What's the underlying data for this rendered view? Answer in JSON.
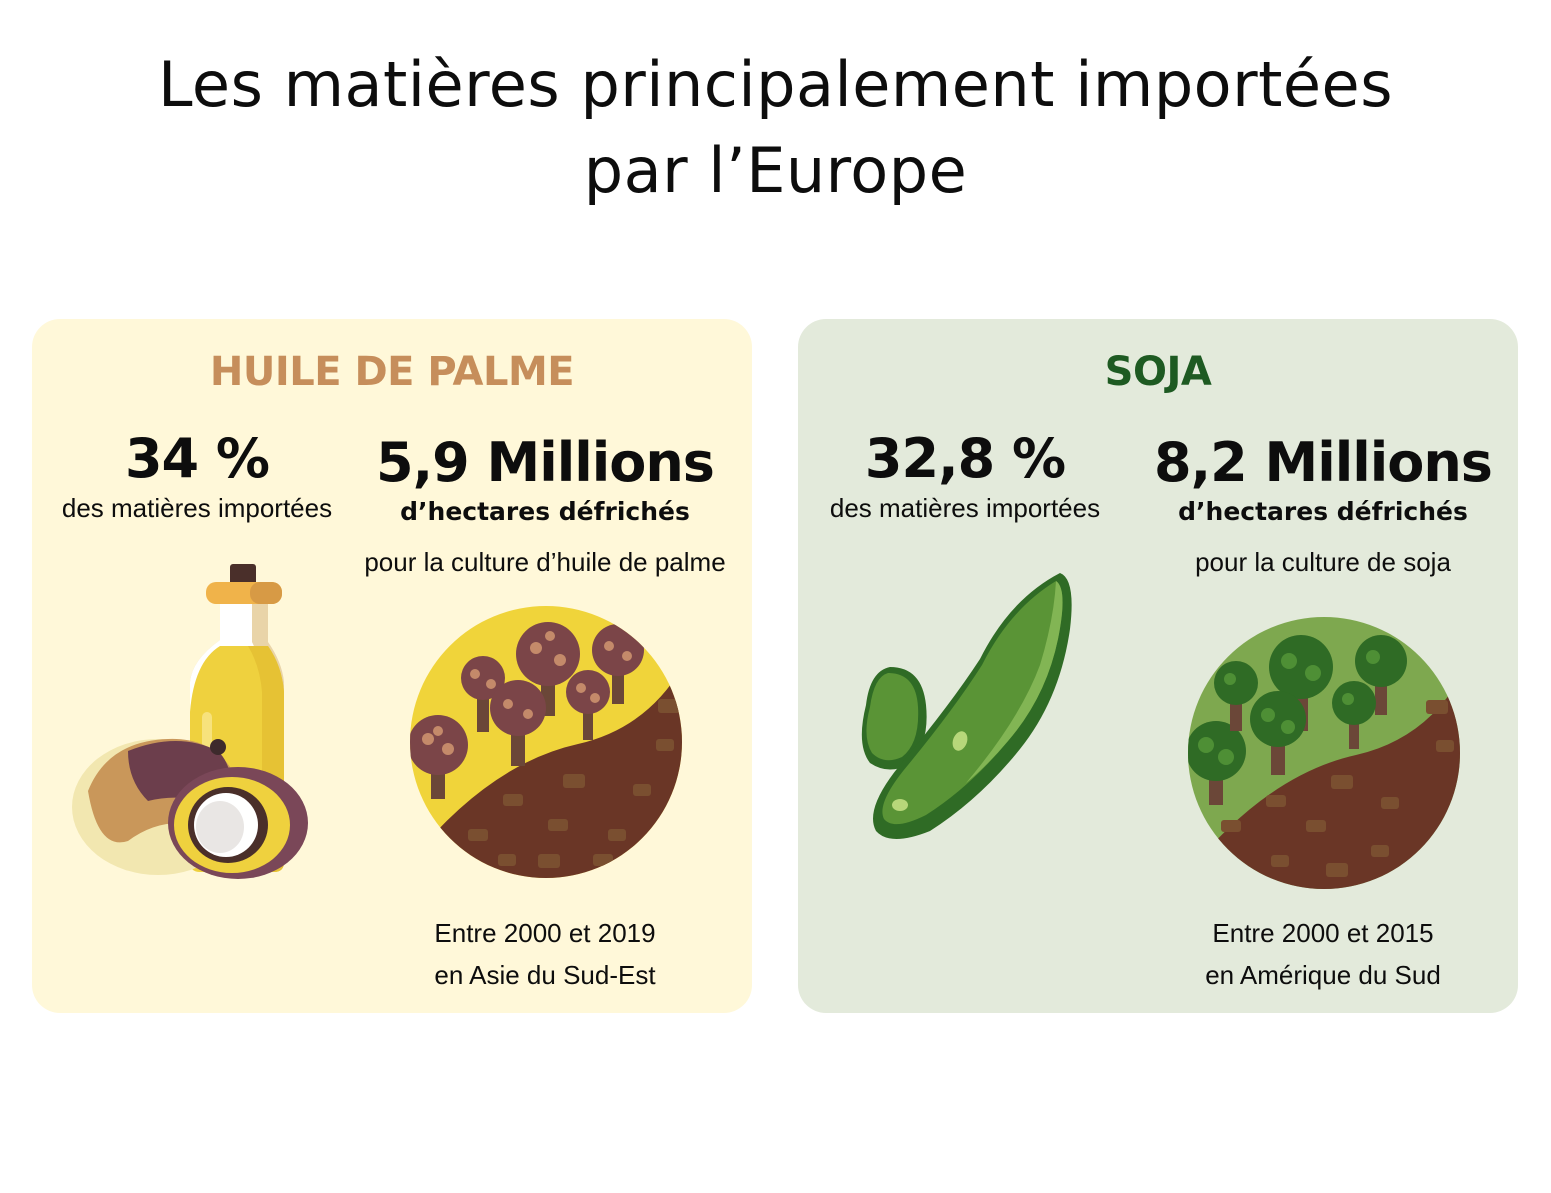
{
  "title": {
    "line1": "Les matières principalement importées",
    "line2": "par l’Europe"
  },
  "palm": {
    "heading": "HUILE DE PALME",
    "share_value": "34 %",
    "share_label": "des matières importées",
    "area_value": "5,9 Millions",
    "area_unit": "d’hectares défrichés",
    "area_purpose": "pour la culture d’huile de palme",
    "period": "Entre 2000 et 2019",
    "region": "en Asie du Sud-Est",
    "colors": {
      "panel": "#fff8d9",
      "heading": "#c68e5b",
      "forest": "#f0d43a",
      "soil": "#6a3626"
    },
    "icons": [
      "oil-bottle-icon",
      "palm-fruit-icon",
      "deforestation-icon"
    ]
  },
  "soy": {
    "heading": "SOJA",
    "share_value": "32,8 %",
    "share_label": "des matières importées",
    "area_value": "8,2 Millions",
    "area_unit": "d’hectares défrichés",
    "area_purpose": "pour la culture de soja",
    "period": "Entre 2000 et 2015",
    "region": "en Amérique du Sud",
    "colors": {
      "panel": "#e3eadb",
      "heading": "#1e5a22",
      "forest": "#7ea84f",
      "soil": "#6a3626"
    },
    "icons": [
      "soy-pod-icon",
      "soy-bean-icon",
      "deforestation-icon"
    ]
  }
}
